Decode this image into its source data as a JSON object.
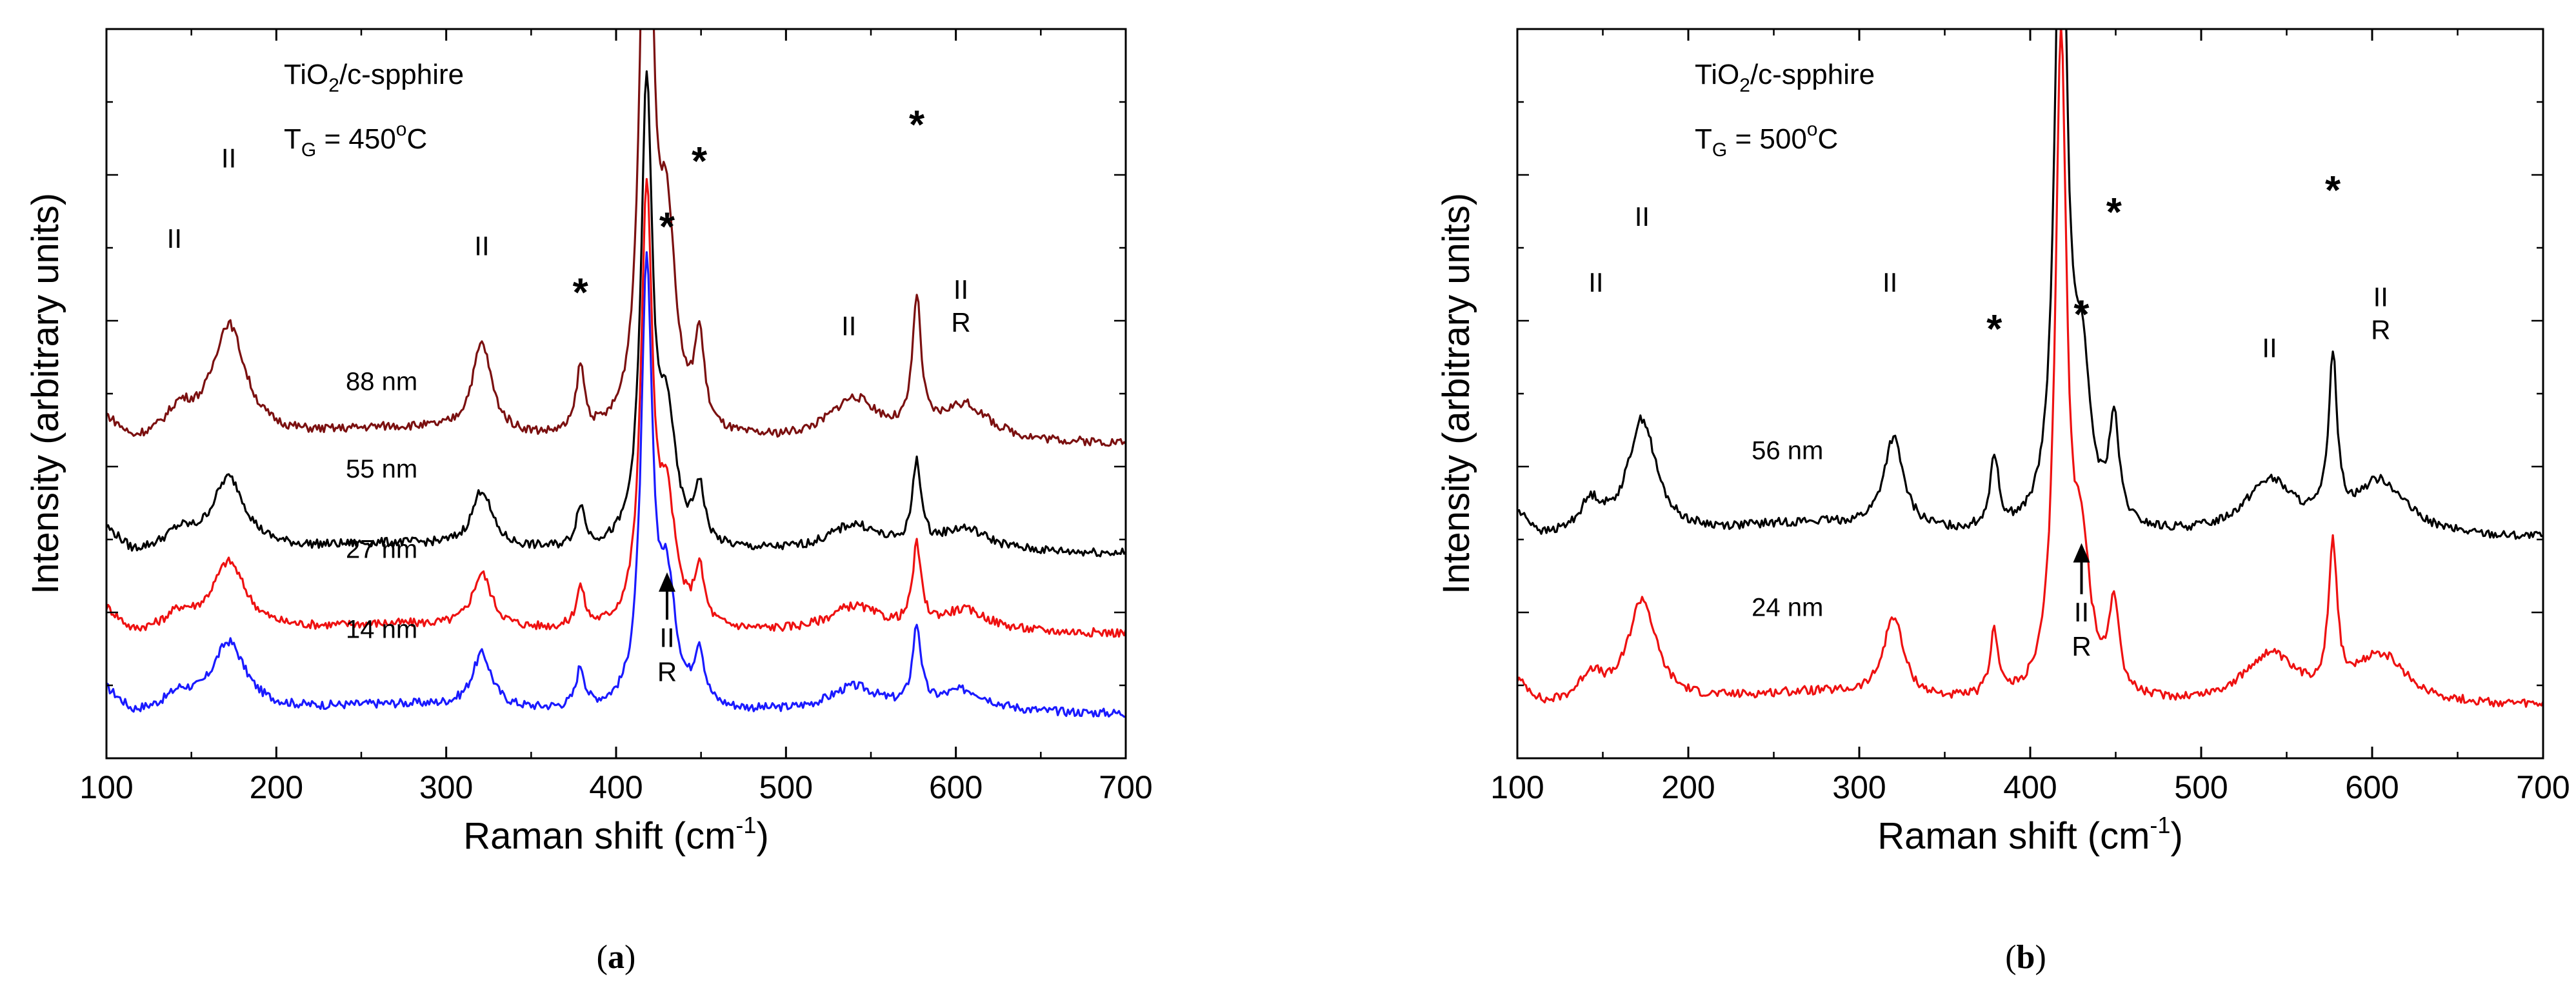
{
  "chart_data": [
    {
      "id": "a",
      "type": "line",
      "caption_letter": "a",
      "caption_open": "(",
      "caption_close": ")",
      "sample": "TiO",
      "sample_sub": "2",
      "sample_rest": "/c-spphire",
      "temp_prefix": "T",
      "temp_sub": "G",
      "temp_value": " = 450",
      "temp_unit": "C",
      "temp_deg": "o",
      "xlabel": "Raman shift (cm",
      "xlabel_sup": "-1",
      "xlabel_close": ")",
      "ylabel": "Intensity (arbitrary units)",
      "xlim": [
        100,
        700
      ],
      "ylim": [
        0,
        1
      ],
      "xticks": [
        "100",
        "200",
        "300",
        "400",
        "500",
        "600",
        "700"
      ],
      "series": [
        {
          "name": "14 nm",
          "color": "#1a1aff",
          "offset": 0.06,
          "scale": 0.18,
          "peak_scale": 1.0
        },
        {
          "name": "27 nm",
          "color": "#ee1111",
          "offset": 0.17,
          "scale": 0.18,
          "peak_scale": 1.0
        },
        {
          "name": "55 nm",
          "color": "#000000",
          "offset": 0.28,
          "scale": 0.19,
          "peak_scale": 1.0
        },
        {
          "name": "88 nm",
          "color": "#7b1010",
          "offset": 0.43,
          "scale": 0.23,
          "peak_scale": 1.3
        }
      ],
      "peaks": [
        {
          "x": 143,
          "a": 0.22,
          "w": 10
        },
        {
          "x": 172,
          "a": 0.95,
          "w": 12
        },
        {
          "x": 321,
          "a": 0.75,
          "w": 7
        },
        {
          "x": 379,
          "a": 0.55,
          "w": 3
        },
        {
          "x": 418,
          "a": 6.0,
          "w": 4
        },
        {
          "x": 430,
          "a": 1.6,
          "w": 6
        },
        {
          "x": 449,
          "a": 0.75,
          "w": 3.5
        },
        {
          "x": 540,
          "a": 0.35,
          "w": 18
        },
        {
          "x": 577,
          "a": 1.1,
          "w": 3
        },
        {
          "x": 605,
          "a": 0.3,
          "w": 18
        },
        {
          "x": 270,
          "a": 0.12,
          "w": 60
        }
      ],
      "annotations": [
        {
          "text": "II",
          "x": 140,
          "y": 0.7,
          "cls": "ann"
        },
        {
          "text": "II",
          "x": 172,
          "y": 0.81,
          "cls": "ann"
        },
        {
          "text": "II",
          "x": 321,
          "y": 0.69,
          "cls": "ann"
        },
        {
          "text": "*",
          "x": 379,
          "y": 0.62,
          "cls": "star"
        },
        {
          "text": "*",
          "x": 430,
          "y": 0.71,
          "cls": "star"
        },
        {
          "text": "*",
          "x": 449,
          "y": 0.8,
          "cls": "star"
        },
        {
          "text": "II",
          "x": 537,
          "y": 0.58,
          "cls": "ann"
        },
        {
          "text": "*",
          "x": 577,
          "y": 0.85,
          "cls": "star"
        },
        {
          "text": "II",
          "x": 603,
          "y": 0.63,
          "cls": "ann"
        },
        {
          "text": "R",
          "x": 603,
          "y": 0.585,
          "cls": "ann"
        }
      ],
      "arrow": {
        "x": 430,
        "label1": "II",
        "label2": "R",
        "y_tip": 0.255,
        "y_base": 0.19
      },
      "curve_labels": [
        {
          "text": "88 nm",
          "x": 262,
          "y": 0.505
        },
        {
          "text": "55 nm",
          "x": 262,
          "y": 0.385
        },
        {
          "text": "27 nm",
          "x": 262,
          "y": 0.275
        },
        {
          "text": "14 nm",
          "x": 262,
          "y": 0.165
        }
      ]
    },
    {
      "id": "b",
      "type": "line",
      "caption_letter": "b",
      "caption_open": "(",
      "caption_close": ")",
      "sample": "TiO",
      "sample_sub": "2",
      "sample_rest": "/c-spphire",
      "temp_prefix": "T",
      "temp_sub": "G",
      "temp_value": " = 500",
      "temp_unit": "C",
      "temp_deg": "o",
      "xlabel": "Raman shift (cm",
      "xlabel_sup": "-1",
      "xlabel_close": ")",
      "ylabel": "Intensity (arbitrary units)",
      "xlim": [
        100,
        700
      ],
      "ylim": [
        0,
        1
      ],
      "xticks": [
        "100",
        "200",
        "300",
        "400",
        "500",
        "600",
        "700"
      ],
      "series": [
        {
          "name": "24 nm",
          "color": "#ee1111",
          "offset": 0.07,
          "scale": 0.27,
          "peak_scale": 1.0
        },
        {
          "name": "56 nm",
          "color": "#000000",
          "offset": 0.3,
          "scale": 0.3,
          "peak_scale": 1.0
        }
      ],
      "peaks": [
        {
          "x": 143,
          "a": 0.25,
          "w": 8
        },
        {
          "x": 173,
          "a": 0.95,
          "w": 10
        },
        {
          "x": 320,
          "a": 0.75,
          "w": 7
        },
        {
          "x": 379,
          "a": 0.6,
          "w": 3
        },
        {
          "x": 418,
          "a": 6.0,
          "w": 4
        },
        {
          "x": 430,
          "a": 1.25,
          "w": 6
        },
        {
          "x": 449,
          "a": 0.85,
          "w": 3.5
        },
        {
          "x": 540,
          "a": 0.45,
          "w": 18
        },
        {
          "x": 577,
          "a": 1.35,
          "w": 3
        },
        {
          "x": 605,
          "a": 0.45,
          "w": 18
        },
        {
          "x": 270,
          "a": 0.12,
          "w": 60
        }
      ],
      "annotations": [
        {
          "text": "II",
          "x": 146,
          "y": 0.64,
          "cls": "ann"
        },
        {
          "text": "II",
          "x": 173,
          "y": 0.73,
          "cls": "ann"
        },
        {
          "text": "II",
          "x": 318,
          "y": 0.64,
          "cls": "ann"
        },
        {
          "text": "*",
          "x": 379,
          "y": 0.57,
          "cls": "star"
        },
        {
          "text": "*",
          "x": 430,
          "y": 0.59,
          "cls": "star"
        },
        {
          "text": "*",
          "x": 449,
          "y": 0.73,
          "cls": "star"
        },
        {
          "text": "II",
          "x": 540,
          "y": 0.55,
          "cls": "ann"
        },
        {
          "text": "*",
          "x": 577,
          "y": 0.76,
          "cls": "star"
        },
        {
          "text": "II",
          "x": 605,
          "y": 0.62,
          "cls": "ann"
        },
        {
          "text": "R",
          "x": 605,
          "y": 0.575,
          "cls": "ann"
        }
      ],
      "arrow": {
        "x": 430,
        "label1": "II",
        "label2": "R",
        "y_tip": 0.295,
        "y_base": 0.225
      },
      "curve_labels": [
        {
          "text": "56 nm",
          "x": 258,
          "y": 0.41
        },
        {
          "text": "24 nm",
          "x": 258,
          "y": 0.195
        }
      ]
    }
  ]
}
